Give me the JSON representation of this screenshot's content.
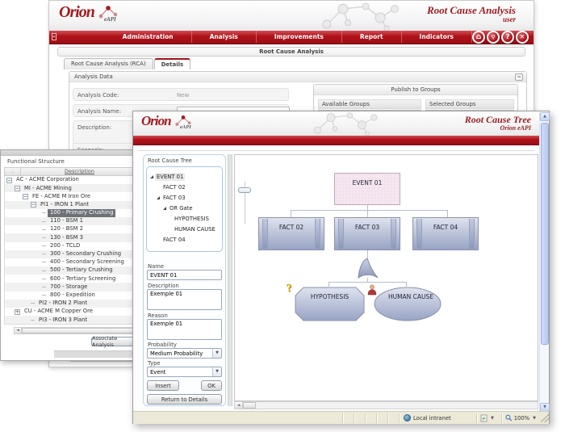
{
  "colors": {
    "brand_red": "#b1121a",
    "title_red": "#9e1c22",
    "selected_row_bg": "#6e7277",
    "fact_fill_top": "#dfe3ef",
    "fact_fill_bottom": "#98a4c4",
    "event_fill": "#f5e6f0",
    "panel_border_blue": "#bcd4e8",
    "statusbar_bg": "#ece9d8"
  },
  "back_window": {
    "logo": {
      "name": "Orion",
      "sub": "eAPI"
    },
    "title": "Root Cause Analysis",
    "subtitle": "user",
    "nav": {
      "expander": "»",
      "items": [
        "Administration",
        "Analysis",
        "Improvements",
        "Report",
        "Indicators"
      ],
      "icons": [
        {
          "name": "home-icon",
          "glyph": "⌂"
        },
        {
          "name": "key-icon",
          "glyph": "⚲"
        },
        {
          "name": "help-icon",
          "glyph": "?"
        },
        {
          "name": "close-icon",
          "glyph": "✕"
        }
      ]
    },
    "page_header": "Root Cause Analysis",
    "tabs": [
      {
        "label": "Root Cause Analysis (RCA)",
        "active": false
      },
      {
        "label": "Details",
        "active": true
      }
    ],
    "analysis_panel": {
      "title": "Analysis Data",
      "collapse_glyph": "≈",
      "code_label": "Analysis Code:",
      "code_value": "New",
      "name_label": "Analysis Name:",
      "name_value": "",
      "description_label": "Description:",
      "scenario_label": "Scenario:"
    },
    "publish_panel": {
      "title": "Publish to Groups",
      "available_label": "Available Groups",
      "selected_label": "Selected Groups"
    }
  },
  "left_window": {
    "title": "Functional Structure",
    "grid_header": {
      "icon_col": ".",
      "description_col": "Description"
    },
    "tree": [
      {
        "label": "AC - ACME Corporation",
        "indent": 2,
        "expander": "minus"
      },
      {
        "label": "MI - ACME Mining",
        "indent": 12,
        "expander": "minus"
      },
      {
        "label": "FE - ACME M Iron Ore",
        "indent": 22,
        "expander": "minus"
      },
      {
        "label": "PI1 - IRON 1 Plant",
        "indent": 32,
        "expander": "minus"
      },
      {
        "label": "100 - Primary Crushing",
        "indent": 46,
        "selected": true
      },
      {
        "label": "110 - BSM 1",
        "indent": 46
      },
      {
        "label": "120 - BSM 2",
        "indent": 46
      },
      {
        "label": "130 - BSM 3",
        "indent": 46
      },
      {
        "label": "200 - TCLD",
        "indent": 46
      },
      {
        "label": "300 - Secondary Crushing",
        "indent": 46
      },
      {
        "label": "400 - Secondary Screening",
        "indent": 46
      },
      {
        "label": "500 - Tertiary Crushing",
        "indent": 46
      },
      {
        "label": "600 - Tertiary Screening",
        "indent": 46
      },
      {
        "label": "700 - Storage",
        "indent": 46
      },
      {
        "label": "800 - Expedition",
        "indent": 46
      },
      {
        "label": "PI2 - IRON 2 Plant",
        "indent": 32
      },
      {
        "label": "CU - ACME M Copper Ore",
        "indent": 12,
        "expander": "plus"
      },
      {
        "label": "PI3 - IRON 3 Plant",
        "indent": 32
      }
    ],
    "associate_button": "Associate Analysis"
  },
  "front_window": {
    "logo": {
      "name": "Orion",
      "sub": "eAPI"
    },
    "title": "Root Cause Tree",
    "subtitle": "Orion eAPI",
    "tree_panel": {
      "label": "Root Cause Tree",
      "items": [
        {
          "label": "EVENT 01",
          "indent": 4,
          "arrow": true,
          "selected": true
        },
        {
          "label": "FACT 02",
          "indent": 18
        },
        {
          "label": "FACT 03",
          "indent": 12,
          "arrow": true
        },
        {
          "label": "OR Gate",
          "indent": 20,
          "arrow": true
        },
        {
          "label": "HYPOTHESIS",
          "indent": 32
        },
        {
          "label": "HUMAN CAUSE",
          "indent": 32
        },
        {
          "label": "FACT 04",
          "indent": 18
        }
      ]
    },
    "form": {
      "name_label": "Name",
      "name_value": "EVENT 01",
      "description_label": "Description",
      "description_value": "Exemple 01",
      "reason_label": "Reason",
      "reason_value": "Exemple 01",
      "probability_label": "Probability",
      "probability_value": "Medium Probability",
      "type_label": "Type",
      "type_value": "Event",
      "insert_label": "Insert",
      "ok_label": "OK",
      "return_label": "Return to Details"
    },
    "diagram": {
      "event": "EVENT 01",
      "facts": [
        "FACT 02",
        "FACT 03",
        "FACT 04"
      ],
      "gate": "OR Gate",
      "hypothesis": "HYPOTHESIS",
      "human_cause": "HUMAN CAUSE"
    },
    "statusbar": {
      "zone": "Local intranet",
      "zoom": "100%"
    }
  }
}
